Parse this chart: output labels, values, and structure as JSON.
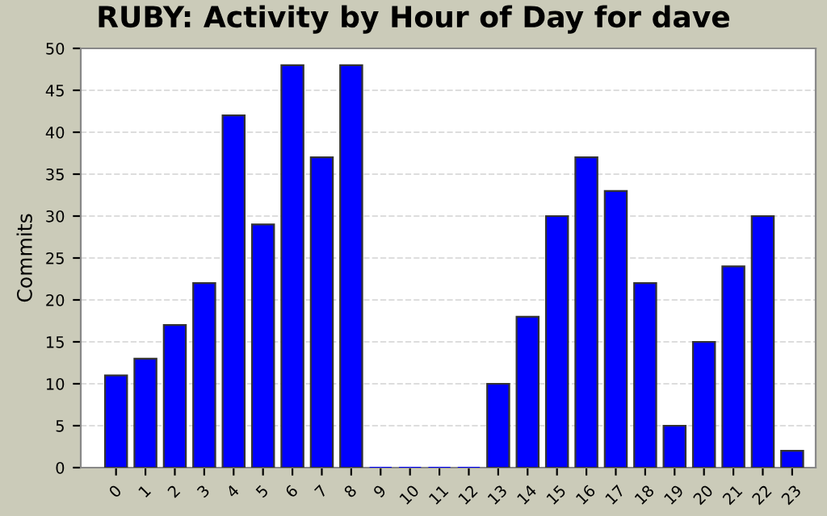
{
  "chart_data": {
    "type": "bar",
    "title": "RUBY: Activity by Hour of Day for dave",
    "ylabel": "Commits",
    "categories": [
      "0",
      "1",
      "2",
      "3",
      "4",
      "5",
      "6",
      "7",
      "8",
      "9",
      "10",
      "11",
      "12",
      "13",
      "14",
      "15",
      "16",
      "17",
      "18",
      "19",
      "20",
      "21",
      "22",
      "23"
    ],
    "values": [
      11,
      13,
      17,
      22,
      42,
      29,
      48,
      37,
      48,
      0,
      0,
      0,
      0,
      10,
      18,
      30,
      37,
      33,
      22,
      5,
      15,
      24,
      30,
      2
    ],
    "color": "#0000ff",
    "ylim": [
      0,
      50
    ],
    "yticks": [
      0,
      5,
      10,
      15,
      20,
      25,
      30,
      35,
      40,
      45,
      50
    ],
    "grid": "y"
  }
}
